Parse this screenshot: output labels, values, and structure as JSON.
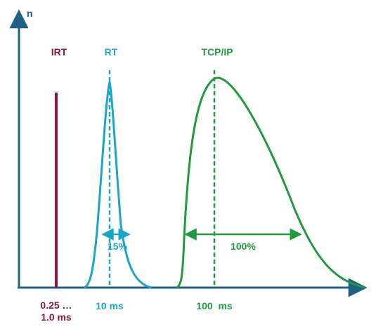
{
  "diagram": {
    "y_axis_label": "n",
    "colors": {
      "axis": "#1f5f85",
      "irt": "#8b1a3a",
      "rt": "#1aa6c8",
      "tcp": "#1f9a3e"
    },
    "irt": {
      "label": "IRT",
      "x_label_line1": "0.25 …",
      "x_label_line2": "1.0 ms"
    },
    "rt": {
      "label": "RT",
      "x_label": "10 ms",
      "width_label": "15%"
    },
    "tcp": {
      "label": "TCP/IP",
      "x_label": "100  ms",
      "width_label": "100%"
    }
  }
}
